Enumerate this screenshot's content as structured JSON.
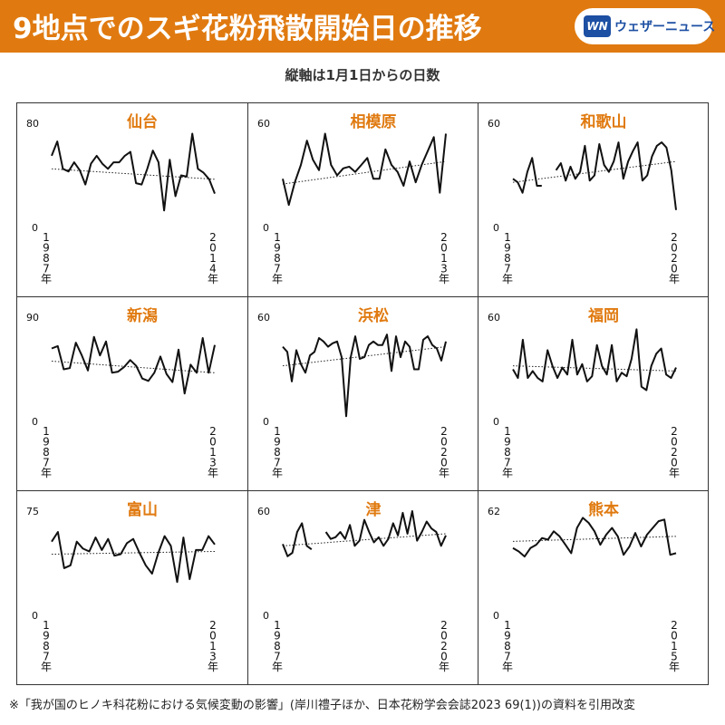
{
  "header": {
    "title": "9地点でのスギ花粉飛散開始日の推移",
    "logo_mark": "WN",
    "logo_text": "ウェザーニュース"
  },
  "subtitle": "縦軸は1月1日からの日数",
  "footnote": "※「我が国のヒノキ科花粉における気候変動の影響」(岸川禮子ほか、日本花粉学会会誌2023 69(1))の資料を引用改変",
  "colors": {
    "accent": "#e07a10",
    "line": "#111111",
    "title": "#e07a10",
    "logo": "#1d4fa3"
  },
  "chart_data": [
    {
      "type": "line",
      "title": "仙台",
      "ylim": [
        0,
        80
      ],
      "ytick_labels": [
        "0",
        "80"
      ],
      "x_start": 1987,
      "x_end": 2015,
      "x_start_label": "1987年",
      "x_end_label": "2014年",
      "trend": [
        45,
        37
      ],
      "series": [
        {
          "values": [
            55,
            66,
            45,
            43,
            50,
            44,
            33,
            49,
            55,
            49,
            45,
            50,
            50,
            55,
            58,
            34,
            33,
            45,
            59,
            50,
            13,
            52,
            24,
            40,
            39,
            72,
            45,
            42,
            37,
            26
          ]
        }
      ]
    },
    {
      "type": "line",
      "title": "相模原",
      "ylim": [
        0,
        60
      ],
      "ytick_labels": [
        "0",
        "60"
      ],
      "x_start": 1987,
      "x_end": 2013,
      "x_start_label": "1987年",
      "x_end_label": "2013年",
      "trend": [
        25,
        38
      ],
      "series": [
        {
          "values": [
            28,
            13,
            26,
            36,
            50,
            39,
            33,
            54,
            36,
            30,
            34,
            35,
            32,
            36,
            40,
            28,
            28,
            45,
            36,
            32,
            24,
            38,
            26,
            36,
            44,
            52,
            20,
            54
          ]
        }
      ]
    },
    {
      "type": "line",
      "title": "和歌山",
      "ylim": [
        0,
        60
      ],
      "ytick_labels": [
        "0",
        "60"
      ],
      "x_start": 1987,
      "x_end": 2021,
      "x_start_label": "1987年",
      "x_end_label": "2020年",
      "trend": [
        26,
        38
      ],
      "series": [
        {
          "values": [
            28,
            26,
            20,
            32,
            40,
            24,
            24,
            null,
            null,
            33,
            37,
            27,
            35,
            28,
            32,
            47,
            27,
            30,
            48,
            36,
            32,
            38,
            49,
            28,
            38,
            44,
            49,
            27,
            30,
            41,
            47,
            49,
            46,
            33,
            10
          ]
        }
      ]
    },
    {
      "type": "line",
      "title": "新潟",
      "ylim": [
        0,
        90
      ],
      "ytick_labels": [
        "0",
        "90"
      ],
      "x_start": 1987,
      "x_end": 2013,
      "x_start_label": "1987年",
      "x_end_label": "2013年",
      "trend": [
        52,
        42
      ],
      "series": [
        {
          "values": [
            63,
            65,
            45,
            46,
            68,
            57,
            44,
            73,
            57,
            69,
            42,
            43,
            47,
            53,
            48,
            37,
            35,
            42,
            56,
            41,
            34,
            62,
            24,
            49,
            42,
            72,
            42,
            66
          ]
        }
      ]
    },
    {
      "type": "line",
      "title": "浜松",
      "ylim": [
        0,
        60
      ],
      "ytick_labels": [
        "0",
        "60"
      ],
      "x_start": 1987,
      "x_end": 2021,
      "x_start_label": "1987年",
      "x_end_label": "2020年",
      "trend": [
        32,
        43
      ],
      "series": [
        {
          "values": [
            43,
            40,
            23,
            41,
            33,
            28,
            38,
            40,
            48,
            46,
            43,
            45,
            46,
            37,
            3,
            37,
            49,
            36,
            37,
            44,
            46,
            44,
            44,
            50,
            29,
            49,
            37,
            46,
            43,
            30,
            30,
            47,
            49,
            44,
            42,
            35,
            46
          ]
        }
      ]
    },
    {
      "type": "line",
      "title": "福岡",
      "ylim": [
        0,
        60
      ],
      "ytick_labels": [
        "0",
        "60"
      ],
      "x_start": 1987,
      "x_end": 2021,
      "x_start_label": "1987年",
      "x_end_label": "2020年",
      "trend": [
        32,
        29
      ],
      "series": [
        {
          "values": [
            30,
            25,
            47,
            25,
            29,
            25,
            23,
            41,
            32,
            25,
            31,
            27,
            47,
            27,
            33,
            23,
            26,
            44,
            32,
            27,
            44,
            23,
            28,
            26,
            36,
            53,
            20,
            18,
            32,
            39,
            42,
            27,
            25,
            31
          ]
        }
      ]
    },
    {
      "type": "line",
      "title": "富山",
      "ylim": [
        0,
        75
      ],
      "ytick_labels": [
        "0",
        "75"
      ],
      "x_start": 1987,
      "x_end": 2013,
      "x_start_label": "1987年",
      "x_end_label": "2013年",
      "trend": [
        44,
        46
      ],
      "series": [
        {
          "values": [
            53,
            60,
            34,
            36,
            53,
            48,
            46,
            56,
            47,
            55,
            43,
            44,
            52,
            55,
            45,
            36,
            30,
            45,
            57,
            50,
            24,
            56,
            26,
            47,
            47,
            57,
            51
          ]
        }
      ]
    },
    {
      "type": "line",
      "title": "津",
      "ylim": [
        0,
        60
      ],
      "ytick_labels": [
        "0",
        "60"
      ],
      "x_start": 1987,
      "x_end": 2021,
      "x_start_label": "1987年",
      "x_end_label": "2020年",
      "trend": [
        40,
        47
      ],
      "series": [
        {
          "values": [
            41,
            34,
            36,
            48,
            53,
            40,
            38,
            null,
            null,
            48,
            44,
            45,
            48,
            44,
            52,
            40,
            43,
            55,
            48,
            42,
            45,
            40,
            44,
            53,
            46,
            59,
            47,
            60,
            43,
            48,
            54,
            50,
            48,
            40,
            46
          ]
        }
      ]
    },
    {
      "type": "line",
      "title": "熊本",
      "ylim": [
        0,
        62
      ],
      "ytick_labels": [
        "0",
        "62"
      ],
      "x_start": 1987,
      "x_end": 2015,
      "x_start_label": "1987年",
      "x_end_label": "2015年",
      "trend": [
        44,
        47
      ],
      "series": [
        {
          "values": [
            40,
            38,
            35,
            40,
            42,
            46,
            45,
            50,
            47,
            42,
            37,
            52,
            58,
            55,
            50,
            42,
            48,
            52,
            47,
            36,
            41,
            49,
            41,
            48,
            52,
            56,
            57,
            36,
            37
          ]
        }
      ]
    }
  ]
}
